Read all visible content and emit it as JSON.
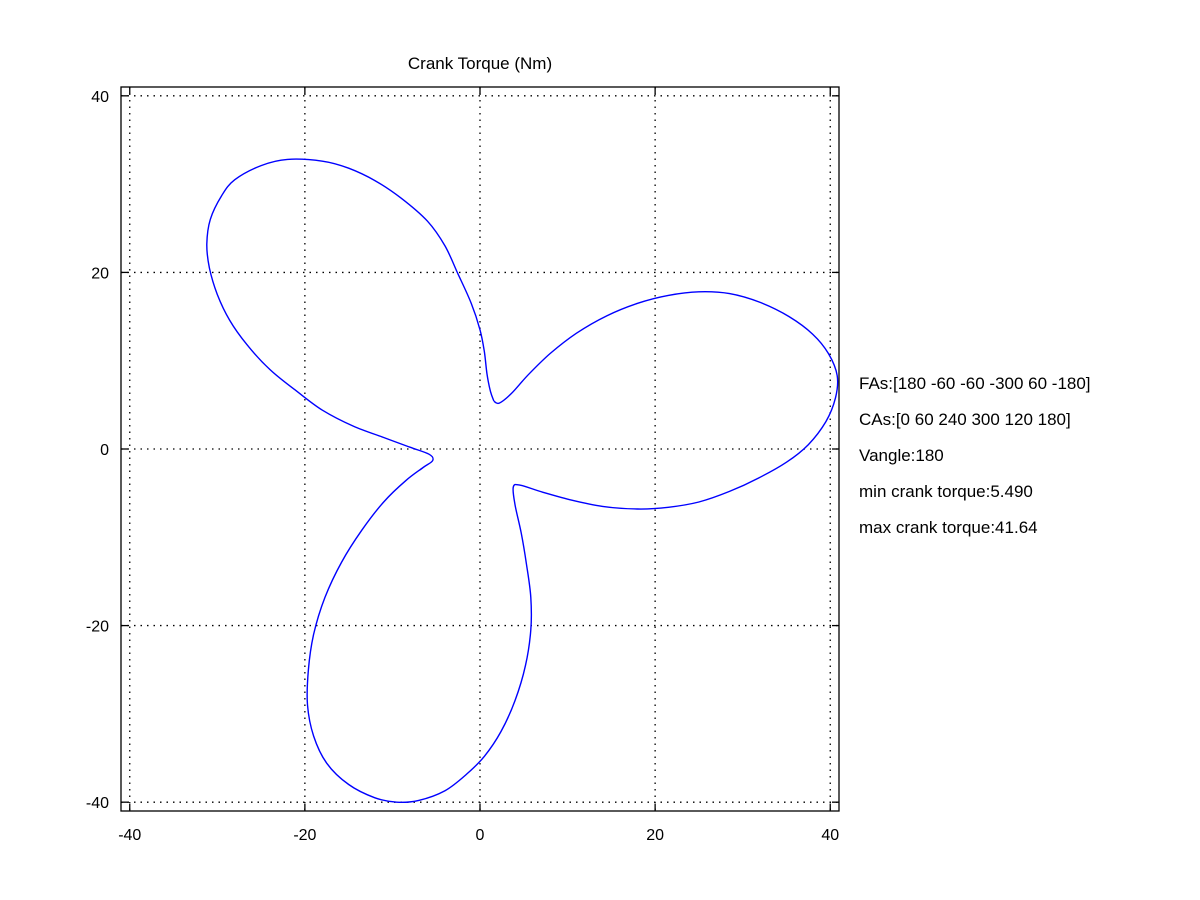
{
  "chart_data": {
    "type": "line",
    "title": "Crank Torque (Nm)",
    "xlabel": "",
    "ylabel": "",
    "xlim": [
      -41,
      41
    ],
    "ylim": [
      -41,
      41
    ],
    "xticks": [
      -40,
      -20,
      0,
      20,
      40
    ],
    "yticks": [
      -40,
      -20,
      0,
      20,
      40
    ],
    "grid": true,
    "aspect": "equal",
    "series": [
      {
        "color": "#0000ff",
        "style": "polar torque trace (x = torque·cos, y = torque·sin)",
        "points": [
          [
            1.6,
            5.4
          ],
          [
            1.2,
            6.5
          ],
          [
            0.8,
            8.5
          ],
          [
            0.5,
            11
          ],
          [
            0,
            13.5
          ],
          [
            -1,
            16.5
          ],
          [
            -2.5,
            19.8
          ],
          [
            -4,
            23
          ],
          [
            -6,
            25.8
          ],
          [
            -9,
            28.4
          ],
          [
            -12,
            30.4
          ],
          [
            -15,
            31.8
          ],
          [
            -18,
            32.6
          ],
          [
            -22,
            32.8
          ],
          [
            -25,
            32.1
          ],
          [
            -28,
            30.5
          ],
          [
            -29.5,
            28.7
          ],
          [
            -30.8,
            26
          ],
          [
            -31.2,
            23.2
          ],
          [
            -30.9,
            20.5
          ],
          [
            -30,
            17.5
          ],
          [
            -28.6,
            14.6
          ],
          [
            -26.6,
            11.8
          ],
          [
            -24,
            9
          ],
          [
            -21,
            6.6
          ],
          [
            -18,
            4.4
          ],
          [
            -14.5,
            2.6
          ],
          [
            -11,
            1.3
          ],
          [
            -8,
            0.2
          ],
          [
            -5.8,
            -0.6
          ],
          [
            -5.4,
            -1.3
          ],
          [
            -6.5,
            -2.1
          ],
          [
            -8.5,
            -3.6
          ],
          [
            -11,
            -6
          ],
          [
            -13.5,
            -9.2
          ],
          [
            -15.8,
            -12.8
          ],
          [
            -17.7,
            -16.8
          ],
          [
            -19,
            -21
          ],
          [
            -19.6,
            -25
          ],
          [
            -19.7,
            -29
          ],
          [
            -19,
            -32.5
          ],
          [
            -17.5,
            -35.6
          ],
          [
            -15,
            -38
          ],
          [
            -12,
            -39.5
          ],
          [
            -9.5,
            -40
          ],
          [
            -7,
            -39.8
          ],
          [
            -4,
            -38.7
          ],
          [
            -1.5,
            -36.8
          ],
          [
            0.5,
            -34.8
          ],
          [
            2.4,
            -32
          ],
          [
            4,
            -28.5
          ],
          [
            5.2,
            -24.5
          ],
          [
            5.8,
            -20.5
          ],
          [
            5.8,
            -16.8
          ],
          [
            5.3,
            -13
          ],
          [
            4.7,
            -9.5
          ],
          [
            4,
            -6.3
          ],
          [
            3.8,
            -4.3
          ],
          [
            4.6,
            -4.1
          ],
          [
            7.2,
            -4.9
          ],
          [
            10.5,
            -5.8
          ],
          [
            14,
            -6.5
          ],
          [
            18,
            -6.8
          ],
          [
            21.5,
            -6.6
          ],
          [
            25,
            -6
          ],
          [
            28.5,
            -4.8
          ],
          [
            31.8,
            -3.3
          ],
          [
            35,
            -1.5
          ],
          [
            37.5,
            0.5
          ],
          [
            39.5,
            3.1
          ],
          [
            40.6,
            5.8
          ],
          [
            40.8,
            8.3
          ],
          [
            39.8,
            10.8
          ],
          [
            38,
            13
          ],
          [
            35.3,
            15
          ],
          [
            32,
            16.6
          ],
          [
            28.5,
            17.6
          ],
          [
            25,
            17.8
          ],
          [
            21.5,
            17.4
          ],
          [
            18,
            16.5
          ],
          [
            14.5,
            15.1
          ],
          [
            11,
            13.1
          ],
          [
            8,
            10.8
          ],
          [
            5.5,
            8.4
          ],
          [
            3.6,
            6.3
          ],
          [
            2.2,
            5.2
          ],
          [
            1.6,
            5.4
          ]
        ]
      }
    ],
    "annotations": [
      "FAs:[180 -60 -60 -300 60 -180]",
      "CAs:[0 60 240 300 120 180]",
      "Vangle:180",
      "min crank torque:5.490",
      "max crank torque:41.64"
    ]
  }
}
